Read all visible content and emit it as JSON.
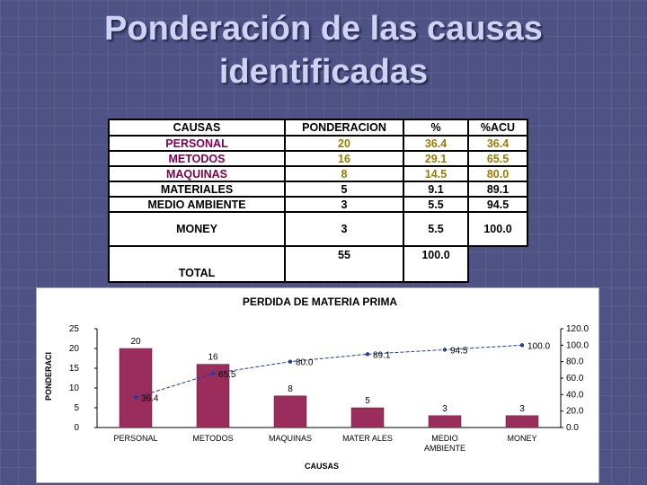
{
  "slide": {
    "title_line1": "Ponderación de las causas",
    "title_line2": "identificadas"
  },
  "table": {
    "headers": [
      "CAUSAS",
      "PONDERACION",
      "%",
      "%ACU"
    ],
    "rows": [
      {
        "causa": "PERSONAL",
        "ponderacion": "20",
        "pct": "36.4",
        "acu": "36.4"
      },
      {
        "causa": "METODOS",
        "ponderacion": "16",
        "pct": "29.1",
        "acu": "65.5"
      },
      {
        "causa": "MAQUINAS",
        "ponderacion": "8",
        "pct": "14.5",
        "acu": "80.0"
      },
      {
        "causa": "MATERIALES",
        "ponderacion": "5",
        "pct": "9.1",
        "acu": "89.1"
      },
      {
        "causa": "MEDIO AMBIENTE",
        "ponderacion": "3",
        "pct": "5.5",
        "acu": "94.5"
      },
      {
        "causa": "MONEY",
        "ponderacion": "3",
        "pct": "5.5",
        "acu": "100.0"
      }
    ],
    "total": {
      "label": "TOTAL",
      "ponderacion": "55",
      "pct": "100.0"
    }
  },
  "colors": {
    "bar": "#9b2d5c",
    "line": "#1f3caa",
    "title_text": "#cfd2f2"
  },
  "chart_data": {
    "type": "bar",
    "title": "PERDIDA DE MATERIA PRIMA",
    "xlabel": "CAUSAS",
    "ylabel": "PONDERACI",
    "categories": [
      "PERSONAL",
      "METODOS",
      "MAQUINAS",
      "MATER ALES",
      "MEDIO AMBIENTE",
      "MONEY"
    ],
    "category_lines": [
      [
        "PERSONAL"
      ],
      [
        "METODOS"
      ],
      [
        "MAQUINAS"
      ],
      [
        "MATER ALES"
      ],
      [
        "MEDIO",
        "AMBIENTE"
      ],
      [
        "MONEY"
      ]
    ],
    "series": [
      {
        "values": [
          20,
          16,
          8,
          5,
          3,
          3
        ],
        "labels": [
          "20",
          "16",
          "8",
          "5",
          "3",
          "3"
        ]
      },
      {
        "values": [
          36.4,
          65.5,
          80.0,
          89.1,
          94.5,
          100.0
        ],
        "labels": [
          "36.4",
          "65.5",
          "80.0",
          "89.1",
          "94.5",
          "100.0"
        ],
        "axis": "right"
      }
    ],
    "ylim": [
      0,
      25
    ],
    "yticks": [
      "0",
      "5",
      "10",
      "15",
      "20",
      "25"
    ],
    "y2lim": [
      0,
      120
    ],
    "y2ticks": [
      "0.0",
      "20.0",
      "40.0",
      "60.0",
      "80.0",
      "100.0",
      "120.0"
    ],
    "grid": false
  }
}
